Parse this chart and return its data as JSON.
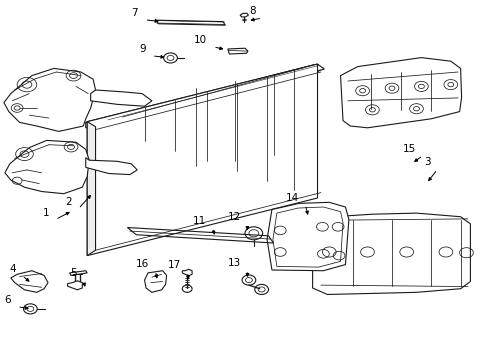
{
  "background_color": "#ffffff",
  "fig_width": 4.9,
  "fig_height": 3.6,
  "dpi": 100,
  "text_color": "#000000",
  "arrow_color": "#000000",
  "line_color": "#1a1a1a",
  "font_size": 7.5,
  "label_positions": {
    "7": [
      0.29,
      0.945,
      0.33,
      0.94
    ],
    "8": [
      0.53,
      0.95,
      0.505,
      0.942
    ],
    "9": [
      0.305,
      0.845,
      0.342,
      0.84
    ],
    "10": [
      0.43,
      0.87,
      0.462,
      0.862
    ],
    "1": [
      0.108,
      0.39,
      0.148,
      0.415
    ],
    "2": [
      0.155,
      0.42,
      0.19,
      0.465
    ],
    "3": [
      0.888,
      0.53,
      0.87,
      0.49
    ],
    "4": [
      0.04,
      0.235,
      0.065,
      0.212
    ],
    "5": [
      0.165,
      0.222,
      0.175,
      0.195
    ],
    "6": [
      0.03,
      0.148,
      0.065,
      0.142
    ],
    "11": [
      0.428,
      0.368,
      0.44,
      0.34
    ],
    "12": [
      0.5,
      0.378,
      0.505,
      0.352
    ],
    "13": [
      0.5,
      0.25,
      0.505,
      0.222
    ],
    "14": [
      0.618,
      0.432,
      0.63,
      0.395
    ],
    "15": [
      0.858,
      0.568,
      0.84,
      0.545
    ],
    "16": [
      0.312,
      0.248,
      0.322,
      0.218
    ],
    "17": [
      0.378,
      0.245,
      0.385,
      0.215
    ]
  }
}
